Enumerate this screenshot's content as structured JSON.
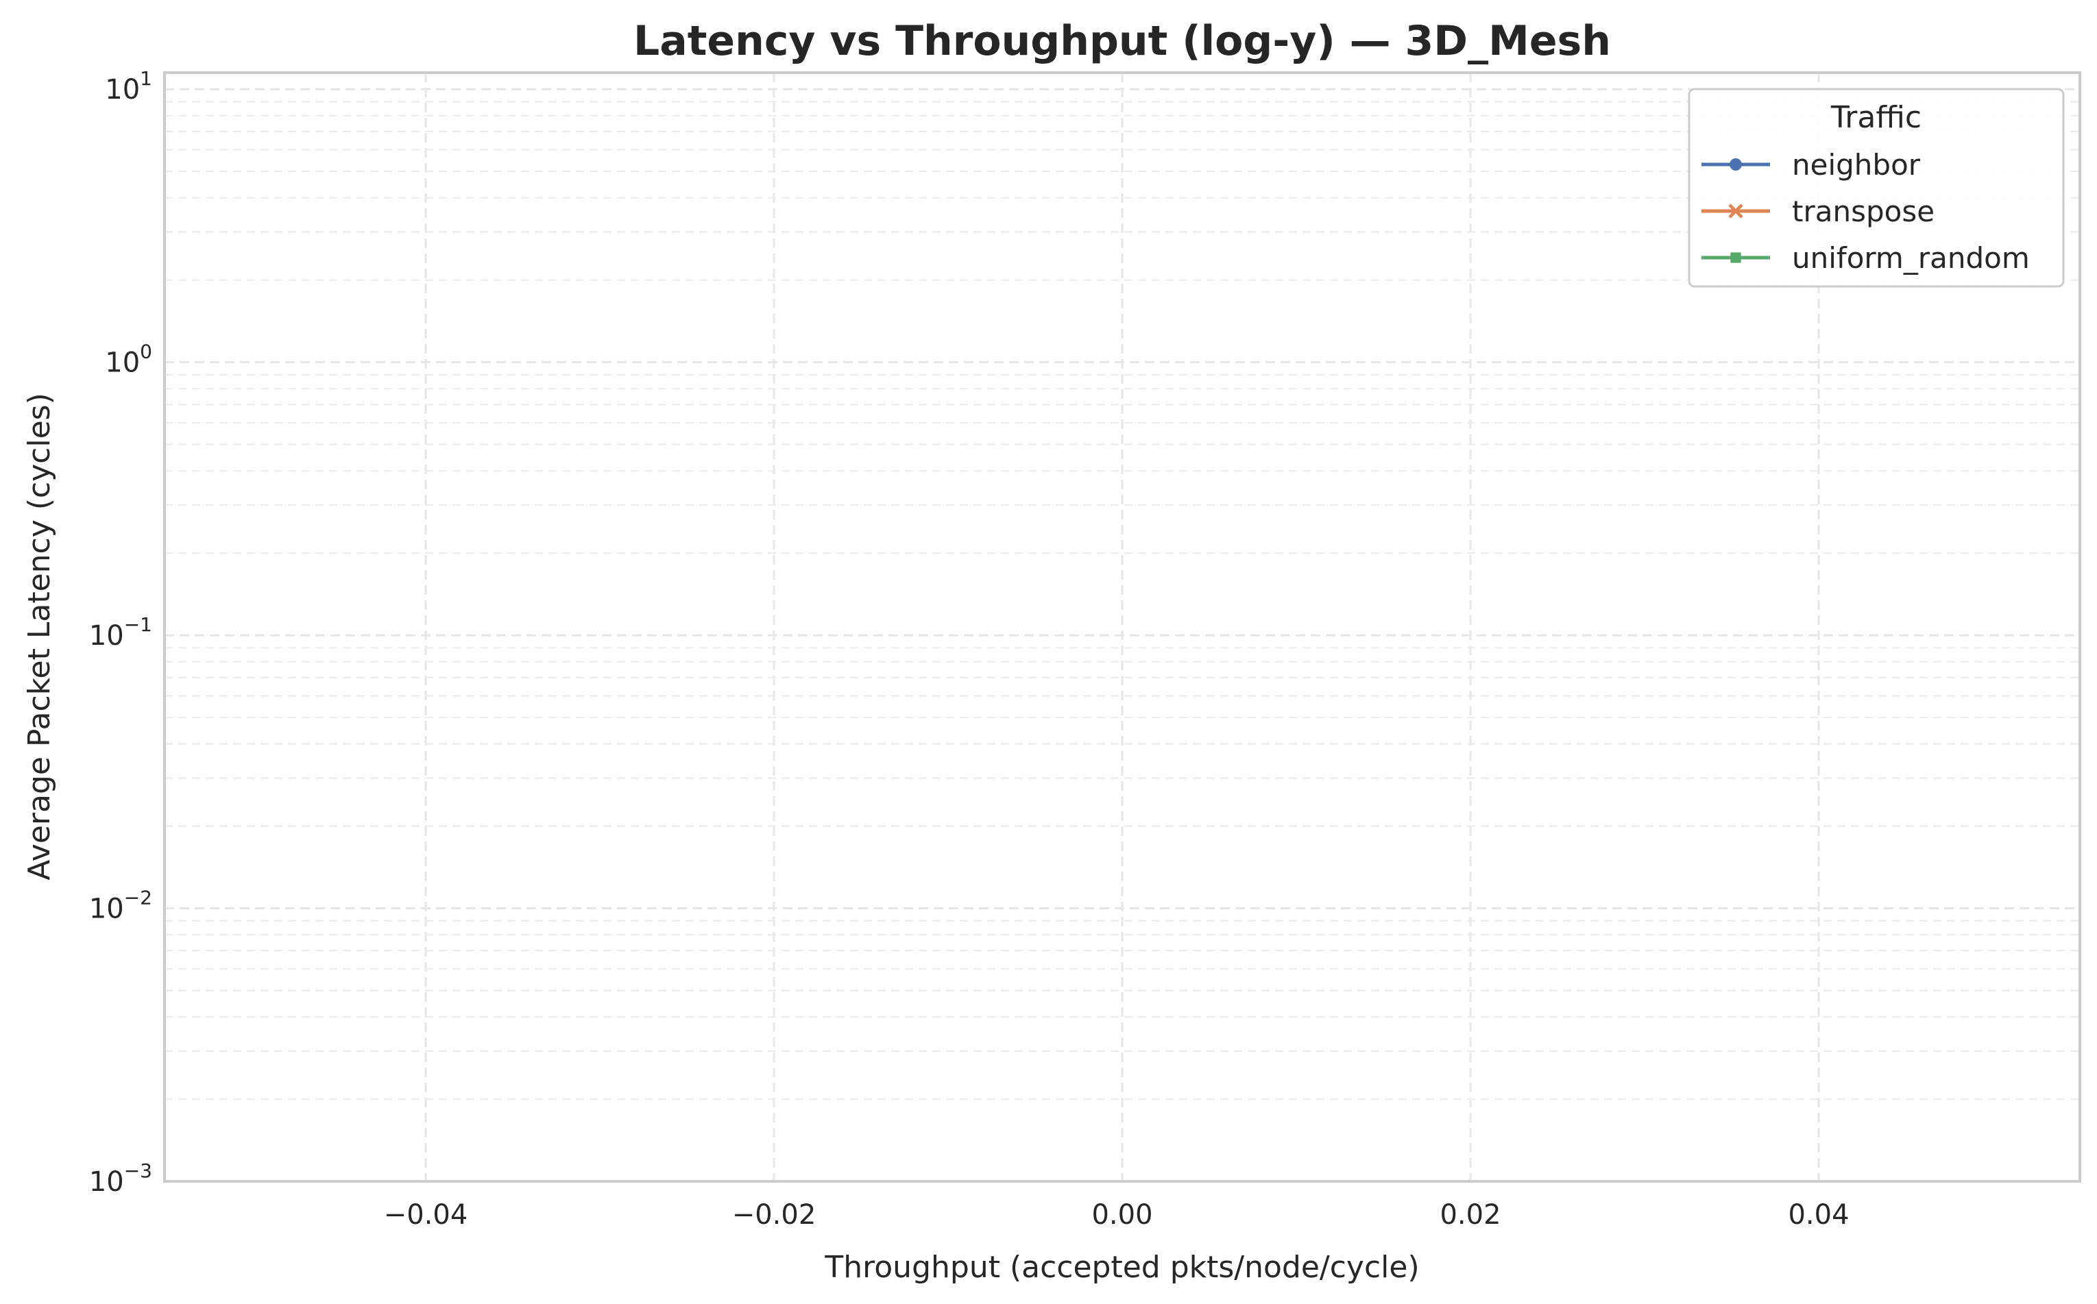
{
  "chart_data": {
    "type": "line",
    "title": "Latency vs Throughput (log-y) — 3D_Mesh",
    "xlabel": "Throughput (accepted pkts/node/cycle)",
    "ylabel": "Average Packet Latency (cycles)",
    "xlim": [
      -0.055,
      0.055
    ],
    "ylim": [
      0.001,
      11.5
    ],
    "yscale": "log",
    "grid": true,
    "x_ticks": [
      {
        "value": -0.04,
        "label": "−0.04"
      },
      {
        "value": -0.02,
        "label": "−0.02"
      },
      {
        "value": 0.0,
        "label": "0.00"
      },
      {
        "value": 0.02,
        "label": "0.02"
      },
      {
        "value": 0.04,
        "label": "0.04"
      }
    ],
    "y_ticks": [
      {
        "value": 0.001,
        "base": "10",
        "exp": "−3"
      },
      {
        "value": 0.01,
        "base": "10",
        "exp": "−2"
      },
      {
        "value": 0.1,
        "base": "10",
        "exp": "−1"
      },
      {
        "value": 1,
        "base": "10",
        "exp": "0"
      },
      {
        "value": 10,
        "base": "10",
        "exp": "1"
      }
    ],
    "legend": {
      "title": "Traffic",
      "placement": "top-right"
    },
    "series": [
      {
        "name": "neighbor",
        "color": "#4c72b0",
        "marker": "circle",
        "x": [],
        "y": []
      },
      {
        "name": "transpose",
        "color": "#dd8452",
        "marker": "x",
        "x": [],
        "y": []
      },
      {
        "name": "uniform_random",
        "color": "#55a868",
        "marker": "square",
        "x": [],
        "y": []
      }
    ]
  }
}
